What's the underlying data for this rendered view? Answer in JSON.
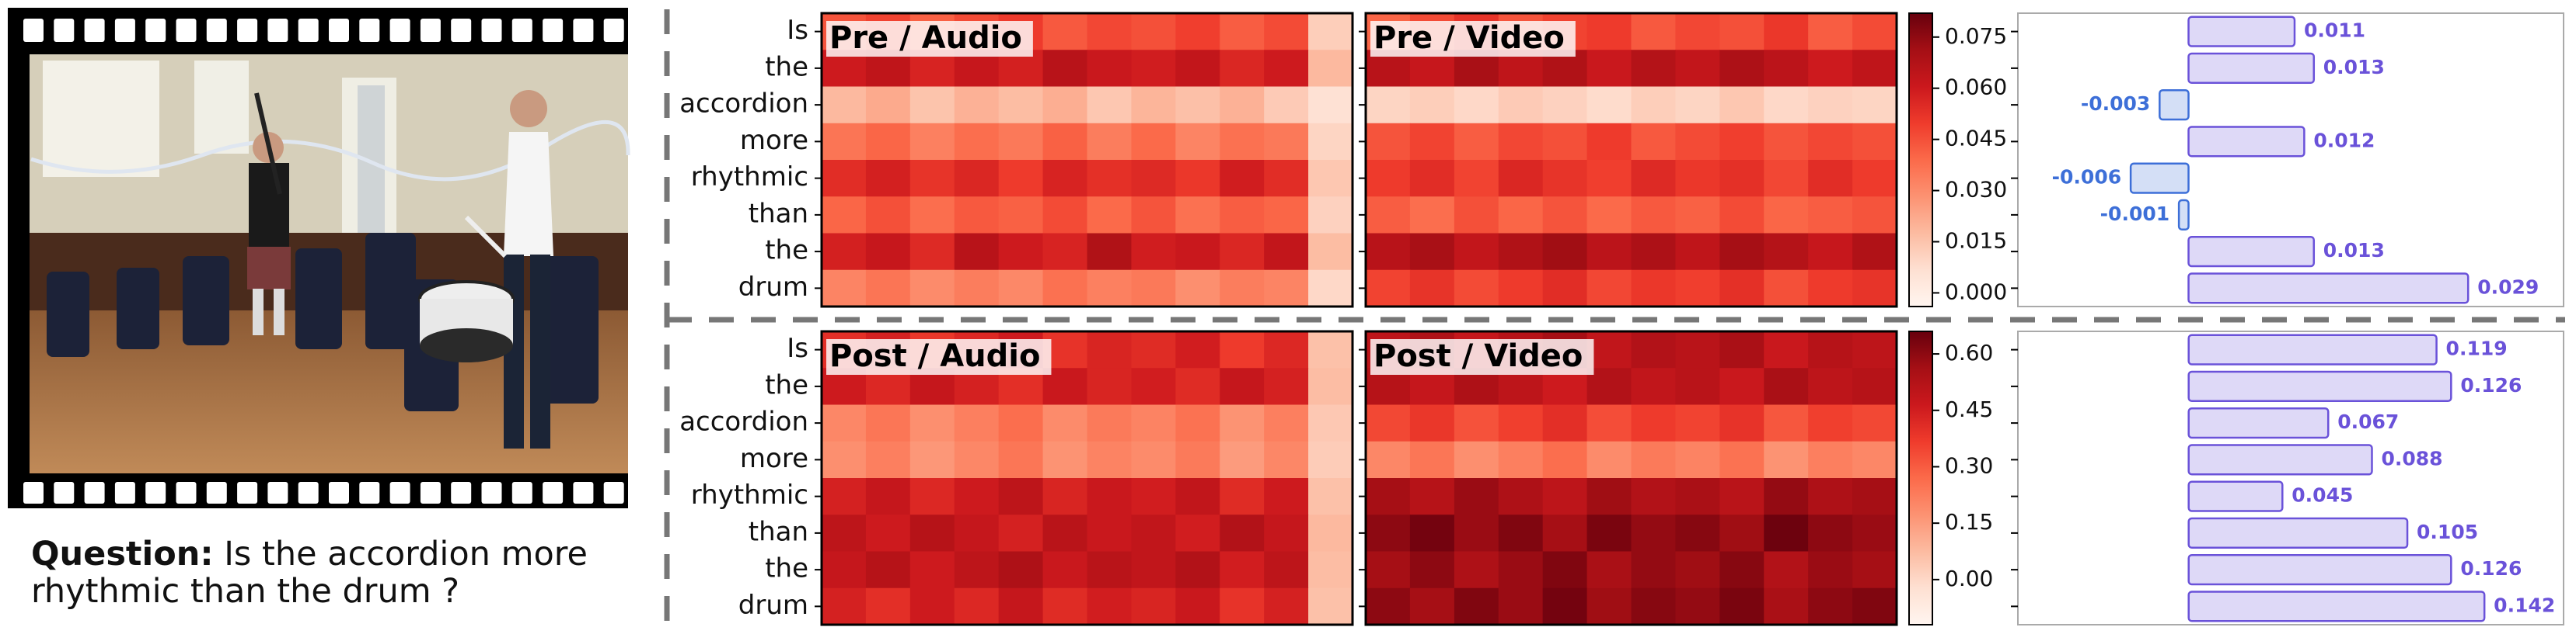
{
  "video": {
    "question_label": "Question:",
    "question": "Is the accordion more rhythmic than the drum ?"
  },
  "chart_data": [
    {
      "type": "attention",
      "colormap": "Reds",
      "rows": [
        "Is",
        "the",
        "accordion",
        "more",
        "rhythmic",
        "than",
        "the",
        "drum"
      ],
      "panels": [
        {
          "title": "Pre / Audio",
          "values": [
            [
              0.044,
              0.048,
              0.041,
              0.046,
              0.05,
              0.043,
              0.047,
              0.045,
              0.049,
              0.042,
              0.046,
              0.012
            ],
            [
              0.06,
              0.064,
              0.057,
              0.062,
              0.058,
              0.066,
              0.061,
              0.059,
              0.063,
              0.056,
              0.06,
              0.018
            ],
            [
              0.018,
              0.022,
              0.015,
              0.02,
              0.017,
              0.021,
              0.014,
              0.019,
              0.016,
              0.02,
              0.013,
              0.006
            ],
            [
              0.036,
              0.04,
              0.033,
              0.038,
              0.035,
              0.041,
              0.034,
              0.039,
              0.032,
              0.037,
              0.035,
              0.01
            ],
            [
              0.054,
              0.058,
              0.052,
              0.056,
              0.05,
              0.057,
              0.053,
              0.055,
              0.051,
              0.059,
              0.054,
              0.014
            ],
            [
              0.04,
              0.045,
              0.038,
              0.043,
              0.041,
              0.046,
              0.039,
              0.044,
              0.037,
              0.042,
              0.04,
              0.011
            ],
            [
              0.058,
              0.062,
              0.055,
              0.066,
              0.06,
              0.057,
              0.068,
              0.059,
              0.061,
              0.056,
              0.063,
              0.017
            ],
            [
              0.032,
              0.036,
              0.03,
              0.034,
              0.031,
              0.037,
              0.033,
              0.035,
              0.029,
              0.034,
              0.032,
              0.009
            ]
          ]
        },
        {
          "title": "Pre / Video",
          "values": [
            [
              0.04,
              0.046,
              0.052,
              0.044,
              0.048,
              0.05,
              0.043,
              0.047,
              0.045,
              0.051,
              0.042,
              0.046
            ],
            [
              0.066,
              0.062,
              0.07,
              0.064,
              0.068,
              0.061,
              0.067,
              0.063,
              0.069,
              0.065,
              0.06,
              0.064
            ],
            [
              0.01,
              0.012,
              0.009,
              0.013,
              0.011,
              0.008,
              0.012,
              0.01,
              0.014,
              0.009,
              0.011,
              0.01
            ],
            [
              0.044,
              0.048,
              0.042,
              0.047,
              0.045,
              0.05,
              0.043,
              0.046,
              0.049,
              0.044,
              0.047,
              0.045
            ],
            [
              0.05,
              0.054,
              0.048,
              0.056,
              0.052,
              0.049,
              0.055,
              0.051,
              0.053,
              0.047,
              0.054,
              0.05
            ],
            [
              0.042,
              0.038,
              0.045,
              0.04,
              0.044,
              0.039,
              0.043,
              0.041,
              0.046,
              0.04,
              0.042,
              0.044
            ],
            [
              0.066,
              0.07,
              0.063,
              0.068,
              0.072,
              0.065,
              0.069,
              0.064,
              0.071,
              0.067,
              0.062,
              0.068
            ],
            [
              0.048,
              0.052,
              0.046,
              0.05,
              0.054,
              0.047,
              0.051,
              0.049,
              0.053,
              0.045,
              0.05,
              0.052
            ]
          ]
        }
      ],
      "colorbar": {
        "ylim": [
          -0.004,
          0.082
        ],
        "yticks": [
          {
            "value": 0,
            "label": "0.000"
          },
          0.015,
          {
            "value": 0.03,
            "label": "0.030"
          },
          0.045,
          {
            "value": 0.06,
            "label": "0.060"
          },
          0.075
        ]
      },
      "bars": {
        "values": [
          0.011,
          0.013,
          -0.003,
          0.012,
          -0.006,
          -0.001,
          0.013,
          0.029
        ],
        "xlim": [
          -0.0177,
          0.0389
        ],
        "pos_color": "#6a52d9",
        "neg_color": "#3d6fd8"
      }
    },
    {
      "type": "attention",
      "colormap": "Reds",
      "rows": [
        "Is",
        "the",
        "accordion",
        "more",
        "rhythmic",
        "than",
        "the",
        "drum"
      ],
      "panels": [
        {
          "title": "Post / Audio",
          "values": [
            [
              0.4,
              0.44,
              0.38,
              0.42,
              0.46,
              0.39,
              0.43,
              0.41,
              0.45,
              0.37,
              0.42,
              0.06
            ],
            [
              0.46,
              0.42,
              0.48,
              0.44,
              0.4,
              0.47,
              0.43,
              0.45,
              0.41,
              0.48,
              0.44,
              0.07
            ],
            [
              0.2,
              0.24,
              0.18,
              0.22,
              0.26,
              0.19,
              0.23,
              0.21,
              0.25,
              0.17,
              0.22,
              0.04
            ],
            [
              0.18,
              0.22,
              0.16,
              0.2,
              0.24,
              0.17,
              0.21,
              0.19,
              0.23,
              0.15,
              0.2,
              0.03
            ],
            [
              0.44,
              0.48,
              0.42,
              0.46,
              0.5,
              0.43,
              0.47,
              0.45,
              0.49,
              0.41,
              0.46,
              0.06
            ],
            [
              0.5,
              0.46,
              0.52,
              0.48,
              0.44,
              0.51,
              0.47,
              0.49,
              0.45,
              0.53,
              0.48,
              0.08
            ],
            [
              0.48,
              0.52,
              0.46,
              0.5,
              0.54,
              0.47,
              0.51,
              0.49,
              0.53,
              0.45,
              0.5,
              0.07
            ],
            [
              0.44,
              0.4,
              0.46,
              0.42,
              0.48,
              0.41,
              0.45,
              0.43,
              0.47,
              0.39,
              0.44,
              0.06
            ]
          ]
        },
        {
          "title": "Post / Video",
          "values": [
            [
              0.5,
              0.54,
              0.48,
              0.52,
              0.56,
              0.49,
              0.53,
              0.51,
              0.55,
              0.47,
              0.52,
              0.5
            ],
            [
              0.52,
              0.48,
              0.54,
              0.5,
              0.46,
              0.53,
              0.49,
              0.51,
              0.47,
              0.55,
              0.5,
              0.52
            ],
            [
              0.34,
              0.38,
              0.32,
              0.36,
              0.4,
              0.33,
              0.37,
              0.35,
              0.39,
              0.31,
              0.36,
              0.34
            ],
            [
              0.2,
              0.24,
              0.18,
              0.22,
              0.26,
              0.19,
              0.23,
              0.21,
              0.25,
              0.17,
              0.22,
              0.2
            ],
            [
              0.56,
              0.52,
              0.58,
              0.54,
              0.5,
              0.57,
              0.53,
              0.55,
              0.51,
              0.59,
              0.54,
              0.56
            ],
            [
              0.6,
              0.64,
              0.58,
              0.62,
              0.56,
              0.63,
              0.59,
              0.61,
              0.57,
              0.65,
              0.6,
              0.58
            ],
            [
              0.56,
              0.6,
              0.54,
              0.58,
              0.62,
              0.55,
              0.59,
              0.57,
              0.61,
              0.53,
              0.58,
              0.56
            ],
            [
              0.6,
              0.56,
              0.62,
              0.58,
              0.64,
              0.57,
              0.61,
              0.59,
              0.63,
              0.55,
              0.6,
              0.62
            ]
          ]
        }
      ],
      "colorbar": {
        "ylim": [
          -0.12,
          0.66
        ],
        "yticks": [
          {
            "value": 0,
            "label": "0.00"
          },
          0.15,
          {
            "value": 0.3,
            "label": "0.30"
          },
          0.45,
          {
            "value": 0.6,
            "label": "0.60"
          }
        ]
      },
      "bars": {
        "values": [
          0.119,
          0.126,
          0.067,
          0.088,
          0.045,
          0.105,
          0.126,
          0.142
        ],
        "xlim": [
          -0.082,
          0.18
        ],
        "pos_color": "#6a52d9",
        "neg_color": "#3d6fd8"
      }
    }
  ]
}
